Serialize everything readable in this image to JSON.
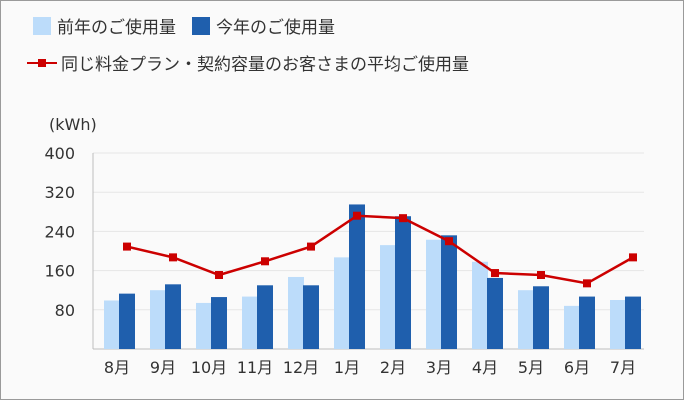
{
  "chart_data": {
    "type": "bar",
    "ylabel": "(kWh)",
    "ylim": [
      0,
      400
    ],
    "yticks": [
      80,
      160,
      240,
      320,
      400
    ],
    "grid": true,
    "legend_position": "top-left",
    "categories": [
      "8月",
      "9月",
      "10月",
      "11月",
      "12月",
      "1月",
      "2月",
      "3月",
      "4月",
      "5月",
      "6月",
      "7月"
    ],
    "series": [
      {
        "name": "前年のご使用量",
        "type": "bar",
        "color": "#bcdcfa",
        "values": [
          99,
          120,
          94,
          107,
          147,
          187,
          212,
          223,
          178,
          120,
          88,
          100
        ]
      },
      {
        "name": "今年のご使用量",
        "type": "bar",
        "color": "#1f5fad",
        "values": [
          113,
          132,
          106,
          130,
          130,
          295,
          271,
          232,
          145,
          128,
          107,
          107
        ]
      },
      {
        "name": "同じ料金プラン・契約容量のお客さまの平均ご使用量",
        "type": "line",
        "color": "#cc0000",
        "values": [
          209,
          187,
          151,
          179,
          209,
          272,
          267,
          220,
          155,
          151,
          134,
          187
        ]
      }
    ]
  }
}
